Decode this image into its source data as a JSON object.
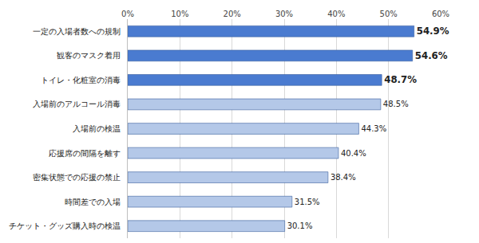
{
  "chart_data": {
    "type": "bar",
    "orientation": "horizontal",
    "categories": [
      "一定の入場者数への規制",
      "観客のマスク着用",
      "トイレ・化粧室の消毒",
      "入場前のアルコール消毒",
      "入場前の検温",
      "応援席の間隔を離す",
      "密集状態での応援の禁止",
      "時間差での入場",
      "チケット・グッズ購入時の検温"
    ],
    "values": [
      54.9,
      54.6,
      48.7,
      48.5,
      44.3,
      40.4,
      38.4,
      31.5,
      30.1
    ],
    "value_labels": [
      "54.9%",
      "54.6%",
      "48.7%",
      "48.5%",
      "44.3%",
      "40.4%",
      "38.4%",
      "31.5%",
      "30.1%"
    ],
    "colors": [
      "#4a7bd0",
      "#4a7bd0",
      "#4a7bd0",
      "#b4c8e8",
      "#b4c8e8",
      "#b4c8e8",
      "#b4c8e8",
      "#b4c8e8",
      "#b4c8e8"
    ],
    "data_labels": true,
    "xlim": [
      0,
      60
    ],
    "xticks": [
      {
        "value": 0,
        "label": "0%"
      },
      {
        "value": 10,
        "label": "10%"
      },
      {
        "value": 20,
        "label": "20%"
      },
      {
        "value": 30,
        "label": "30%"
      },
      {
        "value": 40,
        "label": "40%"
      },
      {
        "value": 50,
        "label": "50%"
      },
      {
        "value": 60,
        "label": "60%"
      }
    ],
    "grid": true
  }
}
